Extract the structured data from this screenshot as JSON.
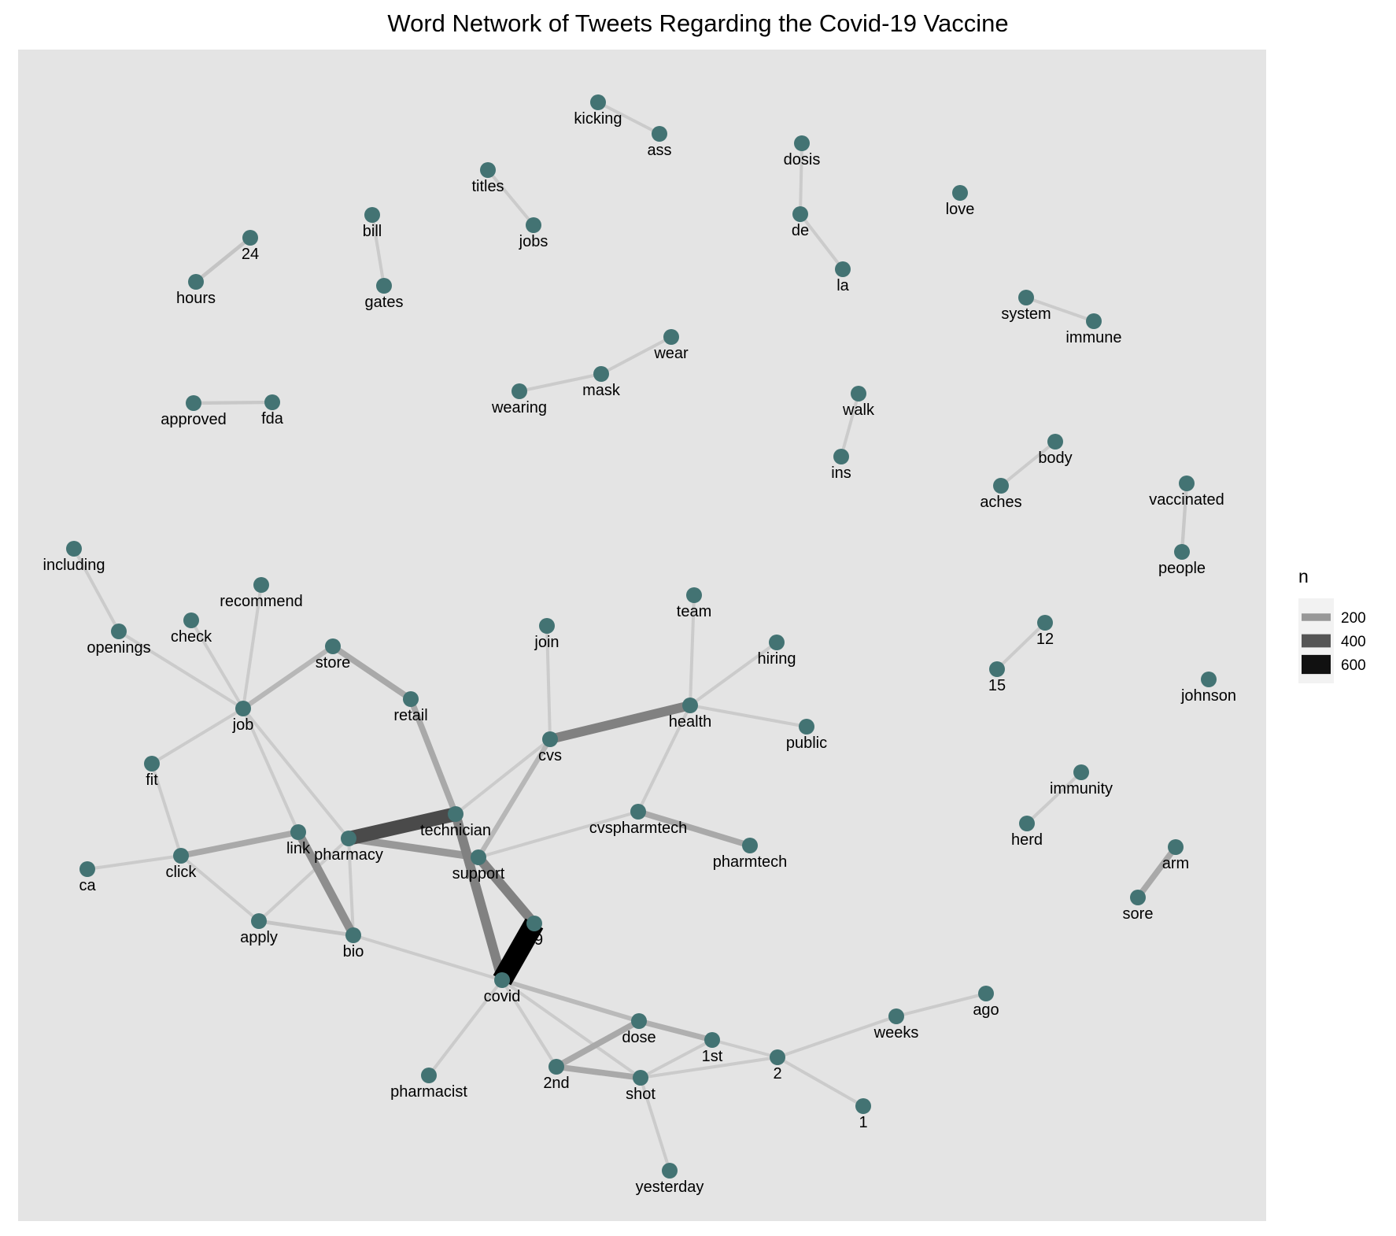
{
  "title": "Word Network of Tweets Regarding the Covid-19 Vaccine",
  "colors": {
    "panel": "#e4e4e4",
    "node": "#437373",
    "edge_low": "#cbcbcb",
    "edge_high": "#000000"
  },
  "legend": {
    "title": "n",
    "entries": [
      {
        "label": "200",
        "value": 200
      },
      {
        "label": "400",
        "value": 400
      },
      {
        "label": "600",
        "value": 600
      }
    ]
  },
  "network": {
    "nodes": [
      "kicking",
      "ass",
      "titles",
      "jobs",
      "dosis",
      "de",
      "la",
      "love",
      "24",
      "hours",
      "bill",
      "gates",
      "system",
      "immune",
      "wear",
      "mask",
      "wearing",
      "approved",
      "fda",
      "walk",
      "ins",
      "body",
      "aches",
      "vaccinated",
      "people",
      "including",
      "openings",
      "recommend",
      "check",
      "job",
      "store",
      "retail",
      "join",
      "team",
      "hiring",
      "health",
      "public",
      "cvs",
      "12",
      "15",
      "johnson",
      "fit",
      "immunity",
      "herd",
      "technician",
      "link",
      "pharmacy",
      "cvspharmtech",
      "pharmtech",
      "arm",
      "sore",
      "click",
      "ca",
      "support",
      "19",
      "apply",
      "bio",
      "covid",
      "ago",
      "weeks",
      "dose",
      "1st",
      "2",
      "2nd",
      "shot",
      "pharmacist",
      "1",
      "yesterday"
    ],
    "edges": [
      {
        "from": "kicking",
        "to": "ass",
        "n": 100
      },
      {
        "from": "titles",
        "to": "jobs",
        "n": 100
      },
      {
        "from": "dosis",
        "to": "de",
        "n": 100
      },
      {
        "from": "de",
        "to": "la",
        "n": 100
      },
      {
        "from": "24",
        "to": "hours",
        "n": 120
      },
      {
        "from": "bill",
        "to": "gates",
        "n": 100
      },
      {
        "from": "system",
        "to": "immune",
        "n": 100
      },
      {
        "from": "wear",
        "to": "mask",
        "n": 100
      },
      {
        "from": "mask",
        "to": "wearing",
        "n": 100
      },
      {
        "from": "approved",
        "to": "fda",
        "n": 110
      },
      {
        "from": "walk",
        "to": "ins",
        "n": 100
      },
      {
        "from": "body",
        "to": "aches",
        "n": 100
      },
      {
        "from": "vaccinated",
        "to": "people",
        "n": 110
      },
      {
        "from": "including",
        "to": "openings",
        "n": 100
      },
      {
        "from": "openings",
        "to": "job",
        "n": 100
      },
      {
        "from": "recommend",
        "to": "job",
        "n": 100
      },
      {
        "from": "check",
        "to": "job",
        "n": 100
      },
      {
        "from": "job",
        "to": "store",
        "n": 160
      },
      {
        "from": "job",
        "to": "fit",
        "n": 100
      },
      {
        "from": "job",
        "to": "link",
        "n": 100
      },
      {
        "from": "job",
        "to": "pharmacy",
        "n": 100
      },
      {
        "from": "store",
        "to": "retail",
        "n": 200
      },
      {
        "from": "retail",
        "to": "technician",
        "n": 200
      },
      {
        "from": "join",
        "to": "cvs",
        "n": 100
      },
      {
        "from": "team",
        "to": "health",
        "n": 100
      },
      {
        "from": "hiring",
        "to": "health",
        "n": 100
      },
      {
        "from": "health",
        "to": "public",
        "n": 100
      },
      {
        "from": "health",
        "to": "cvs",
        "n": 320
      },
      {
        "from": "health",
        "to": "cvspharmtech",
        "n": 100
      },
      {
        "from": "cvs",
        "to": "technician",
        "n": 100
      },
      {
        "from": "cvs",
        "to": "support",
        "n": 160
      },
      {
        "from": "12",
        "to": "15",
        "n": 100
      },
      {
        "from": "fit",
        "to": "click",
        "n": 100
      },
      {
        "from": "immunity",
        "to": "herd",
        "n": 100
      },
      {
        "from": "technician",
        "to": "pharmacy",
        "n": 480
      },
      {
        "from": "technician",
        "to": "covid",
        "n": 320
      },
      {
        "from": "link",
        "to": "click",
        "n": 200
      },
      {
        "from": "link",
        "to": "bio",
        "n": 280
      },
      {
        "from": "pharmacy",
        "to": "support",
        "n": 250
      },
      {
        "from": "pharmacy",
        "to": "apply",
        "n": 100
      },
      {
        "from": "pharmacy",
        "to": "bio",
        "n": 100
      },
      {
        "from": "cvspharmtech",
        "to": "pharmtech",
        "n": 200
      },
      {
        "from": "cvspharmtech",
        "to": "support",
        "n": 100
      },
      {
        "from": "arm",
        "to": "sore",
        "n": 200
      },
      {
        "from": "click",
        "to": "ca",
        "n": 100
      },
      {
        "from": "click",
        "to": "apply",
        "n": 100
      },
      {
        "from": "support",
        "to": "19",
        "n": 320
      },
      {
        "from": "apply",
        "to": "bio",
        "n": 120
      },
      {
        "from": "bio",
        "to": "covid",
        "n": 100
      },
      {
        "from": "19",
        "to": "covid",
        "n": 700
      },
      {
        "from": "covid",
        "to": "dose",
        "n": 150
      },
      {
        "from": "covid",
        "to": "2nd",
        "n": 100
      },
      {
        "from": "covid",
        "to": "shot",
        "n": 100
      },
      {
        "from": "covid",
        "to": "pharmacist",
        "n": 100
      },
      {
        "from": "dose",
        "to": "1st",
        "n": 180
      },
      {
        "from": "dose",
        "to": "2nd",
        "n": 200
      },
      {
        "from": "1st",
        "to": "shot",
        "n": 100
      },
      {
        "from": "1st",
        "to": "2",
        "n": 100
      },
      {
        "from": "2",
        "to": "weeks",
        "n": 100
      },
      {
        "from": "weeks",
        "to": "ago",
        "n": 100
      },
      {
        "from": "2",
        "to": "1",
        "n": 100
      },
      {
        "from": "2",
        "to": "shot",
        "n": 100
      },
      {
        "from": "2nd",
        "to": "shot",
        "n": 200
      },
      {
        "from": "shot",
        "to": "yesterday",
        "n": 100
      }
    ]
  }
}
